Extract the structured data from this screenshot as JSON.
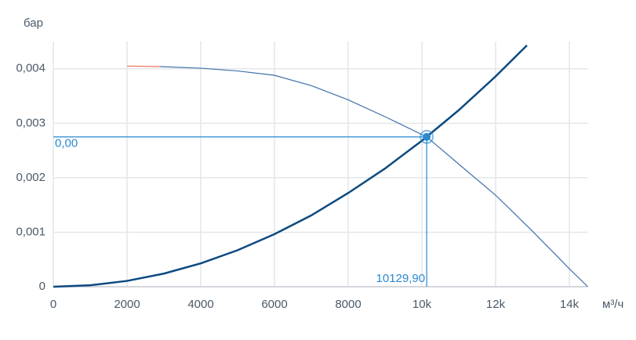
{
  "chart_data": {
    "type": "line",
    "y_label": "бар",
    "x_label": "м³/ч",
    "xlim": [
      0,
      14500
    ],
    "ylim": [
      0,
      0.0045
    ],
    "xticks": [
      0,
      2000,
      4000,
      6000,
      8000,
      {
        "value": 10000,
        "label": "10k"
      },
      {
        "value": 12000,
        "label": "12k"
      },
      {
        "value": 14000,
        "label": "14k"
      }
    ],
    "yticks": [
      0,
      {
        "value": 0.001,
        "label": "0,001"
      },
      {
        "value": 0.002,
        "label": "0,002"
      },
      {
        "value": 0.003,
        "label": "0,003"
      },
      {
        "value": 0.004,
        "label": "0,004"
      }
    ],
    "grid": true,
    "series": [
      {
        "color": "#0d4a80",
        "width": 2.5,
        "x": [
          0,
          1000,
          2000,
          3000,
          4000,
          5000,
          6000,
          7000,
          8000,
          9000,
          10000,
          11000,
          12000,
          12850
        ],
        "values": [
          0,
          2.68e-05,
          0.000107,
          0.000241,
          0.000429,
          0.00067,
          0.000965,
          0.00131,
          0.00172,
          0.00217,
          0.00268,
          0.00324,
          0.00386,
          0.00443
        ]
      },
      {
        "color": "#e8705a",
        "width": 1.2,
        "x": [
          2000,
          2900
        ],
        "values": [
          0.00405,
          0.00404
        ]
      },
      {
        "color": "#3d72a8",
        "width": 1.2,
        "x": [
          2900,
          4000,
          5000,
          6000,
          7000,
          8000,
          9000,
          10129.9,
          11000,
          12000,
          13000,
          14000,
          14500
        ],
        "values": [
          0.00404,
          0.00401,
          0.00396,
          0.00388,
          0.00369,
          0.00343,
          0.00312,
          0.00275,
          0.00225,
          0.00168,
          0.00102,
          0.00033,
          0
        ]
      }
    ],
    "operating_point": {
      "x": 10129.9,
      "y": 0.00275,
      "x_label": "10129,90",
      "y_label": "0,00",
      "color": "#2a8ad0"
    }
  }
}
